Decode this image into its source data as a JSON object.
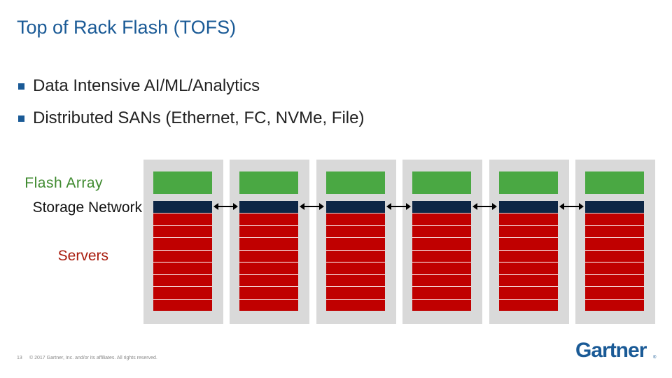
{
  "slide": {
    "title": "Top of Rack Flash (TOFS)",
    "bullets": [
      "Data Intensive AI/ML/Analytics",
      "Distributed SANs (Ethernet, FC, NVMe, File)"
    ]
  },
  "diagram": {
    "labels": {
      "flash": "Flash Array",
      "network": "Storage Network",
      "servers": "Servers"
    },
    "rack_count": 6,
    "servers_per_rack": 8,
    "links_between_racks": 5,
    "colors": {
      "flash": "#4aa843",
      "network": "#0d2645",
      "server": "#c00000",
      "rack": "#d9d9d9",
      "title": "#1a5a96"
    }
  },
  "footer": {
    "page_number": "13",
    "copyright": "© 2017 Gartner, Inc. and/or its affiliates. All rights reserved.",
    "logo": "Gartner",
    "logo_mark": "®"
  }
}
